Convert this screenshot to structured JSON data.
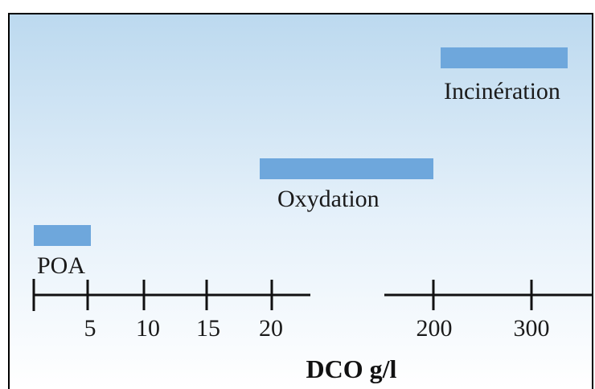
{
  "colors": {
    "bar": "#6ea7dc",
    "background_top": "#bcd9ef",
    "background_mid": "#e6f1fa",
    "background_bottom": "#ffffff",
    "axis": "#111111",
    "frame": "#000000"
  },
  "axis": {
    "label": "DCO g/l",
    "segment_left": {
      "ticks": [
        "",
        "5",
        "10",
        "15",
        "20"
      ]
    },
    "segment_right": {
      "ticks": [
        "200",
        "300"
      ]
    }
  },
  "ranges": [
    {
      "label": "POA",
      "from": "0",
      "to": "5"
    },
    {
      "label": "Oxydation",
      "from": "20",
      "to": "200"
    },
    {
      "label": "Incinération",
      "from": "200",
      "to": ">300"
    }
  ]
}
